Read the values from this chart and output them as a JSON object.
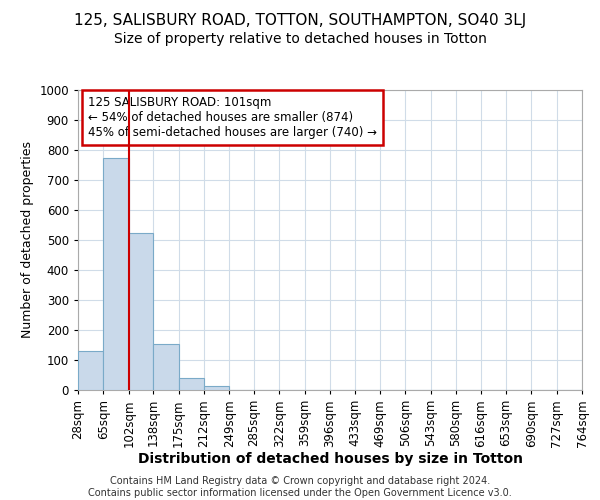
{
  "title1": "125, SALISBURY ROAD, TOTTON, SOUTHAMPTON, SO40 3LJ",
  "title2": "Size of property relative to detached houses in Totton",
  "xlabel": "Distribution of detached houses by size in Totton",
  "ylabel": "Number of detached properties",
  "bin_edges": [
    28,
    65,
    102,
    138,
    175,
    212,
    249,
    285,
    322,
    359,
    396,
    433,
    469,
    506,
    543,
    580,
    616,
    653,
    690,
    727,
    764
  ],
  "bar_heights": [
    130,
    775,
    525,
    155,
    40,
    15,
    0,
    0,
    0,
    0,
    0,
    0,
    0,
    0,
    0,
    0,
    0,
    0,
    0,
    0
  ],
  "bar_color": "#c9d9ea",
  "bar_edge_color": "#7aaac8",
  "property_line_x": 102,
  "property_line_color": "#cc0000",
  "annotation_text": "125 SALISBURY ROAD: 101sqm\n← 54% of detached houses are smaller (874)\n45% of semi-detached houses are larger (740) →",
  "annotation_box_color": "#ffffff",
  "annotation_box_edge": "#cc0000",
  "ylim": [
    0,
    1000
  ],
  "yticks": [
    0,
    100,
    200,
    300,
    400,
    500,
    600,
    700,
    800,
    900,
    1000
  ],
  "fig_bg_color": "#ffffff",
  "plot_bg_color": "#ffffff",
  "grid_color": "#d0dce8",
  "footer_text": "Contains HM Land Registry data © Crown copyright and database right 2024.\nContains public sector information licensed under the Open Government Licence v3.0.",
  "title1_fontsize": 11,
  "title2_fontsize": 10,
  "xlabel_fontsize": 10,
  "ylabel_fontsize": 9,
  "tick_fontsize": 8.5,
  "footer_fontsize": 7
}
